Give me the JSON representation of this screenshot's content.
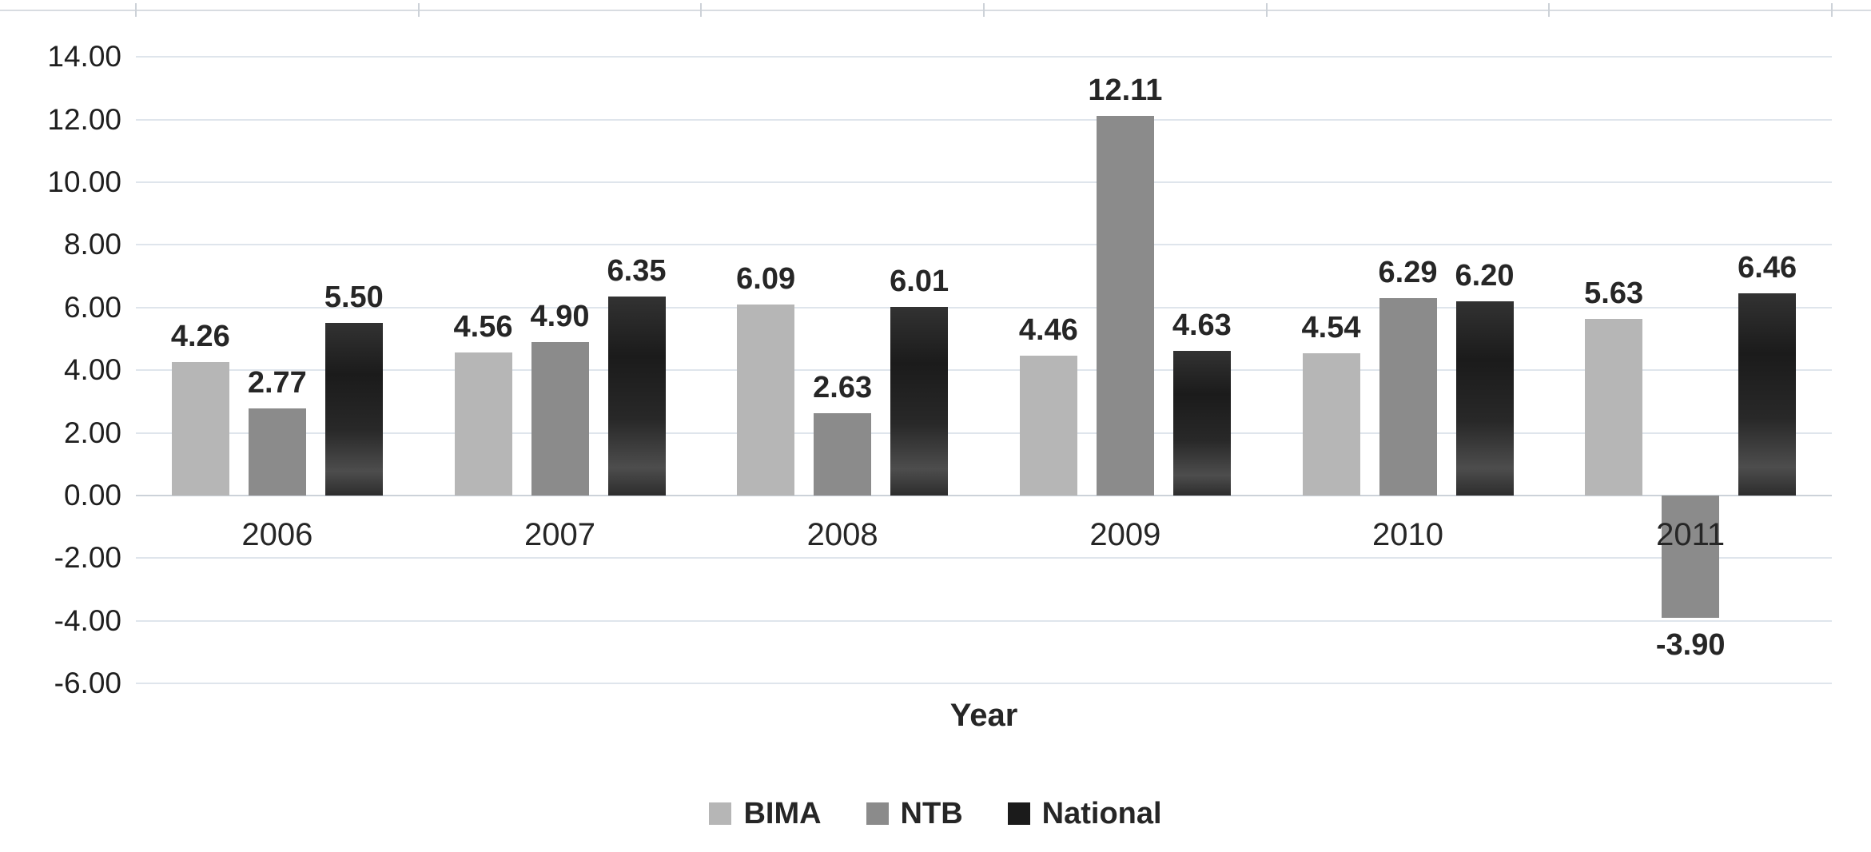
{
  "chart_data": {
    "type": "bar",
    "categories": [
      "2006",
      "2007",
      "2008",
      "2009",
      "2010",
      "2011"
    ],
    "series": [
      {
        "name": "BIMA",
        "color": "#b6b6b6",
        "values": [
          4.26,
          4.56,
          6.09,
          4.46,
          4.54,
          5.63
        ]
      },
      {
        "name": "NTB",
        "color": "#8b8b8b",
        "values": [
          2.77,
          4.9,
          2.63,
          12.11,
          6.29,
          -3.9
        ]
      },
      {
        "name": "National",
        "color": "#1b1b1b",
        "values": [
          5.5,
          6.35,
          6.01,
          4.63,
          6.2,
          6.46
        ]
      }
    ],
    "xlabel": "Year",
    "ylabel": "",
    "ylim": [
      -6,
      14
    ],
    "ytick_labels": [
      "14.00",
      "12.00",
      "10.00",
      "8.00",
      "6.00",
      "4.00",
      "2.00",
      "0.00",
      "-2.00",
      "-4.00",
      "-6.00"
    ],
    "data_labels": true,
    "value_label_decimals": 2,
    "grid": true,
    "legend": [
      "BIMA",
      "NTB",
      "National"
    ],
    "legend_position": "bottom",
    "text_color": "#262626",
    "gridline_color": "#dfe5ec",
    "zero_line_color": "#ccd2d9"
  }
}
